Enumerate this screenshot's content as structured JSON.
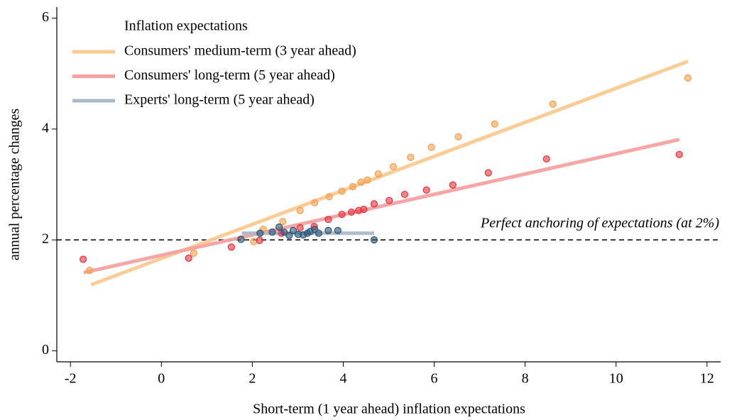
{
  "chart_data": {
    "type": "scatter",
    "x_label": "Short-term (1 year ahead) inflation expectations",
    "y_label": "annual percentage changes",
    "legend_title": "Inflation expectations",
    "legend": "upper left",
    "xlim": [
      -2.3,
      12.3
    ],
    "ylim": [
      -0.2,
      6.2
    ],
    "xticks": [
      -2,
      0,
      2,
      4,
      6,
      8,
      10,
      12
    ],
    "yticks": [
      0,
      2,
      4,
      6
    ],
    "reference_line": 2,
    "annotation": "Perfect anchoring of expectations (at 2%)",
    "series": [
      {
        "name": "Consumers' medium-term (3 year ahead)",
        "color": "#f5a04f",
        "line_color": "#fcc990",
        "x": [
          -1.58,
          0.71,
          2.03,
          2.24,
          2.67,
          3.05,
          3.37,
          3.69,
          3.97,
          4.21,
          4.39,
          4.53,
          4.77,
          5.1,
          5.48,
          5.94,
          6.53,
          7.33,
          8.61,
          11.58
        ],
        "values": [
          1.45,
          1.76,
          1.97,
          2.19,
          2.33,
          2.53,
          2.67,
          2.78,
          2.88,
          2.96,
          3.04,
          3.08,
          3.19,
          3.32,
          3.49,
          3.67,
          3.86,
          4.09,
          4.45,
          4.92
        ],
        "fit_x": [
          -1.55,
          11.58
        ],
        "fit_values": [
          1.19,
          5.22
        ]
      },
      {
        "name": "Consumers' long-term (5 year ahead)",
        "color": "#e8323c",
        "line_color": "#f7a0a0",
        "x": [
          -1.72,
          0.6,
          1.54,
          2.16,
          2.64,
          3.05,
          3.36,
          3.67,
          3.97,
          4.18,
          4.34,
          4.45,
          4.68,
          5.01,
          5.35,
          5.83,
          6.41,
          7.19,
          8.47,
          11.39
        ],
        "values": [
          1.65,
          1.67,
          1.87,
          1.99,
          2.12,
          2.22,
          2.24,
          2.37,
          2.46,
          2.5,
          2.53,
          2.55,
          2.65,
          2.71,
          2.82,
          2.9,
          2.99,
          3.21,
          3.46,
          3.54
        ],
        "fit_x": [
          -1.71,
          11.39
        ],
        "fit_values": [
          1.41,
          3.81
        ]
      },
      {
        "name": "Experts' long-term (5 year ahead)",
        "color": "#2b5676",
        "line_color": "#a9b9c9",
        "x": [
          1.75,
          2.17,
          2.44,
          2.59,
          2.7,
          2.81,
          2.9,
          3.01,
          3.12,
          3.21,
          3.27,
          3.37,
          3.46,
          3.67,
          3.88,
          4.68
        ],
        "values": [
          2.01,
          2.12,
          2.14,
          2.23,
          2.14,
          2.08,
          2.17,
          2.1,
          2.09,
          2.12,
          2.15,
          2.19,
          2.12,
          2.17,
          2.17,
          2.0
        ],
        "fit_x": [
          1.77,
          4.68
        ],
        "fit_values": [
          2.12,
          2.12
        ]
      }
    ]
  }
}
